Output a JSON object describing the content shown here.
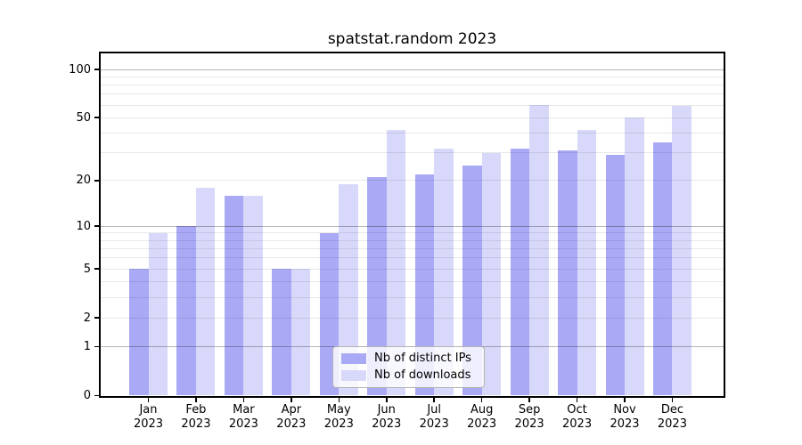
{
  "title": "spatstat.random 2023",
  "chart_data": {
    "type": "bar",
    "title": "spatstat.random 2023",
    "year": "2023",
    "categories": [
      "Jan",
      "Feb",
      "Mar",
      "Apr",
      "May",
      "Jun",
      "Jul",
      "Aug",
      "Sep",
      "Oct",
      "Nov",
      "Dec"
    ],
    "series": [
      {
        "name": "Nb of distinct IPs",
        "color": "#a9a9f5",
        "values": [
          5,
          10,
          16,
          5,
          9,
          21,
          22,
          25,
          32,
          31,
          29,
          35
        ]
      },
      {
        "name": "Nb of downloads",
        "color": "#d8d8fa",
        "values": [
          9,
          18,
          16,
          5,
          19,
          42,
          32,
          30,
          60,
          42,
          50,
          59
        ]
      }
    ],
    "y_scale": "log1p",
    "y_ticks": [
      0,
      1,
      2,
      5,
      10,
      20,
      50,
      100
    ],
    "y_major_gridlines": [
      1,
      10,
      100
    ],
    "y_minor_gridlines": [
      2,
      3,
      4,
      5,
      6,
      7,
      8,
      9,
      20,
      30,
      40,
      50,
      60,
      70,
      80,
      90
    ],
    "ylim": [
      0,
      126
    ],
    "grid": true,
    "legend_position": "lower center"
  },
  "legend": {
    "items": [
      "Nb of distinct IPs",
      "Nb of downloads"
    ]
  },
  "colors": {
    "distinct_ips": "#a9a9f5",
    "downloads": "#d8d8fa",
    "axis": "#000000",
    "major_grid": "rgba(0,0,0,0.28)",
    "minor_grid": "rgba(0,0,0,0.09)",
    "legend_border": "#b3b3b3",
    "legend_bg": "rgba(255,255,255,0.8)"
  }
}
